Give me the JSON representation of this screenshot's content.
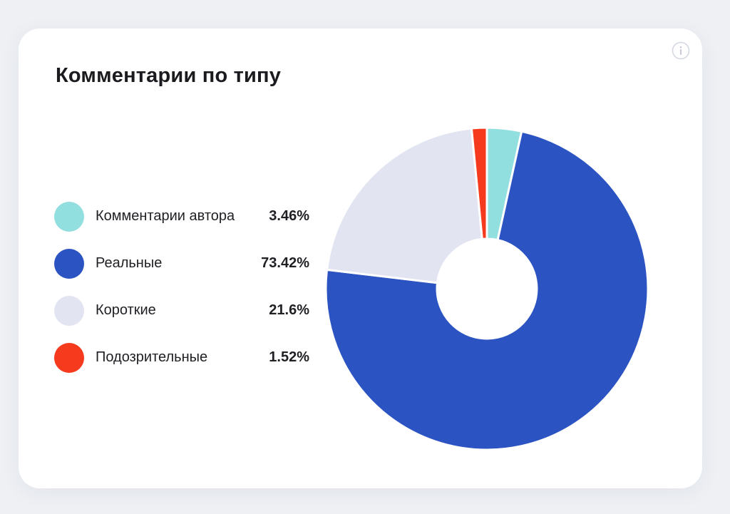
{
  "card": {
    "title": "Комментарии по типу"
  },
  "icons": {
    "info": "info-icon"
  },
  "chart_data": {
    "type": "pie",
    "donut": true,
    "title": "Комментарии по типу",
    "legend_position": "left",
    "categories": [
      "Комментарии автора",
      "Реальные",
      "Короткие",
      "Подозрительные"
    ],
    "values": [
      3.46,
      73.42,
      21.6,
      1.52
    ],
    "value_labels": [
      "3.46%",
      "73.42%",
      "21.6%",
      "1.52%"
    ],
    "colors": [
      "#92dfe0",
      "#2b53c2",
      "#e2e4f1",
      "#f53a1e"
    ]
  }
}
